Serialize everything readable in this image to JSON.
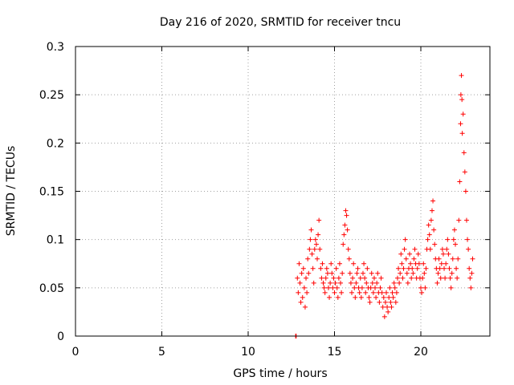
{
  "chart_data": {
    "type": "scatter",
    "title": "Day 216 of 2020, SRMTID for receiver tncu",
    "xlabel": "GPS time / hours",
    "ylabel": "SRMTID / TECUs",
    "xlim": [
      0,
      24
    ],
    "ylim": [
      0,
      0.3
    ],
    "x_ticks": [
      0,
      5,
      10,
      15,
      20
    ],
    "y_ticks": [
      0,
      0.05,
      0.1,
      0.15,
      0.2,
      0.25,
      0.3
    ],
    "x_tick_labels": [
      "0",
      "5",
      "10",
      "15",
      "20"
    ],
    "y_tick_labels": [
      "0",
      "0.05",
      "0.1",
      "0.15",
      "0.2",
      "0.25",
      "0.3"
    ],
    "grid": true,
    "legend": "none",
    "marker": "+",
    "color": "#ff0000",
    "points": [
      [
        12.75,
        0.0
      ],
      [
        12.78,
        0.0
      ],
      [
        12.85,
        0.06
      ],
      [
        12.9,
        0.045
      ],
      [
        12.95,
        0.075
      ],
      [
        13.0,
        0.055
      ],
      [
        13.05,
        0.035
      ],
      [
        13.1,
        0.065
      ],
      [
        13.15,
        0.04
      ],
      [
        13.2,
        0.07
      ],
      [
        13.25,
        0.05
      ],
      [
        13.3,
        0.03
      ],
      [
        13.35,
        0.06
      ],
      [
        13.4,
        0.045
      ],
      [
        13.45,
        0.08
      ],
      [
        13.5,
        0.065
      ],
      [
        13.55,
        0.09
      ],
      [
        13.6,
        0.1
      ],
      [
        13.65,
        0.11
      ],
      [
        13.7,
        0.085
      ],
      [
        13.75,
        0.07
      ],
      [
        13.8,
        0.055
      ],
      [
        13.85,
        0.09
      ],
      [
        13.9,
        0.1
      ],
      [
        13.95,
        0.095
      ],
      [
        14.0,
        0.08
      ],
      [
        14.05,
        0.105
      ],
      [
        14.1,
        0.12
      ],
      [
        14.15,
        0.09
      ],
      [
        14.2,
        0.07
      ],
      [
        14.25,
        0.06
      ],
      [
        14.3,
        0.075
      ],
      [
        14.35,
        0.055
      ],
      [
        14.4,
        0.05
      ],
      [
        14.45,
        0.045
      ],
      [
        14.5,
        0.06
      ],
      [
        14.55,
        0.07
      ],
      [
        14.6,
        0.065
      ],
      [
        14.65,
        0.05
      ],
      [
        14.7,
        0.04
      ],
      [
        14.75,
        0.055
      ],
      [
        14.8,
        0.075
      ],
      [
        14.85,
        0.065
      ],
      [
        14.9,
        0.05
      ],
      [
        14.95,
        0.06
      ],
      [
        15.0,
        0.045
      ],
      [
        15.05,
        0.055
      ],
      [
        15.1,
        0.07
      ],
      [
        15.15,
        0.05
      ],
      [
        15.2,
        0.04
      ],
      [
        15.25,
        0.06
      ],
      [
        15.3,
        0.075
      ],
      [
        15.35,
        0.055
      ],
      [
        15.4,
        0.045
      ],
      [
        15.45,
        0.065
      ],
      [
        15.5,
        0.095
      ],
      [
        15.55,
        0.105
      ],
      [
        15.6,
        0.115
      ],
      [
        15.65,
        0.13
      ],
      [
        15.7,
        0.125
      ],
      [
        15.75,
        0.11
      ],
      [
        15.8,
        0.09
      ],
      [
        15.85,
        0.08
      ],
      [
        15.9,
        0.065
      ],
      [
        15.95,
        0.055
      ],
      [
        16.0,
        0.045
      ],
      [
        16.05,
        0.06
      ],
      [
        16.1,
        0.075
      ],
      [
        16.15,
        0.05
      ],
      [
        16.2,
        0.04
      ],
      [
        16.25,
        0.055
      ],
      [
        16.3,
        0.065
      ],
      [
        16.35,
        0.07
      ],
      [
        16.4,
        0.05
      ],
      [
        16.45,
        0.045
      ],
      [
        16.5,
        0.06
      ],
      [
        16.55,
        0.04
      ],
      [
        16.6,
        0.05
      ],
      [
        16.65,
        0.065
      ],
      [
        16.7,
        0.075
      ],
      [
        16.75,
        0.06
      ],
      [
        16.8,
        0.045
      ],
      [
        16.85,
        0.055
      ],
      [
        16.9,
        0.07
      ],
      [
        16.95,
        0.05
      ],
      [
        17.0,
        0.04
      ],
      [
        17.05,
        0.035
      ],
      [
        17.1,
        0.05
      ],
      [
        17.15,
        0.065
      ],
      [
        17.2,
        0.055
      ],
      [
        17.25,
        0.045
      ],
      [
        17.3,
        0.06
      ],
      [
        17.35,
        0.05
      ],
      [
        17.4,
        0.04
      ],
      [
        17.45,
        0.055
      ],
      [
        17.5,
        0.065
      ],
      [
        17.55,
        0.045
      ],
      [
        17.6,
        0.035
      ],
      [
        17.65,
        0.05
      ],
      [
        17.7,
        0.06
      ],
      [
        17.75,
        0.045
      ],
      [
        17.8,
        0.03
      ],
      [
        17.85,
        0.04
      ],
      [
        17.9,
        0.02
      ],
      [
        17.95,
        0.035
      ],
      [
        18.0,
        0.045
      ],
      [
        18.05,
        0.03
      ],
      [
        18.1,
        0.025
      ],
      [
        18.15,
        0.04
      ],
      [
        18.2,
        0.05
      ],
      [
        18.25,
        0.035
      ],
      [
        18.3,
        0.03
      ],
      [
        18.35,
        0.045
      ],
      [
        18.4,
        0.04
      ],
      [
        18.45,
        0.055
      ],
      [
        18.5,
        0.05
      ],
      [
        18.55,
        0.035
      ],
      [
        18.6,
        0.045
      ],
      [
        18.65,
        0.06
      ],
      [
        18.7,
        0.07
      ],
      [
        18.75,
        0.055
      ],
      [
        18.8,
        0.065
      ],
      [
        18.85,
        0.085
      ],
      [
        18.9,
        0.075
      ],
      [
        18.95,
        0.06
      ],
      [
        19.0,
        0.07
      ],
      [
        19.05,
        0.09
      ],
      [
        19.1,
        0.1
      ],
      [
        19.15,
        0.08
      ],
      [
        19.2,
        0.065
      ],
      [
        19.25,
        0.055
      ],
      [
        19.3,
        0.07
      ],
      [
        19.35,
        0.085
      ],
      [
        19.4,
        0.075
      ],
      [
        19.45,
        0.06
      ],
      [
        19.5,
        0.07
      ],
      [
        19.55,
        0.065
      ],
      [
        19.6,
        0.08
      ],
      [
        19.65,
        0.09
      ],
      [
        19.7,
        0.075
      ],
      [
        19.75,
        0.06
      ],
      [
        19.8,
        0.07
      ],
      [
        19.85,
        0.085
      ],
      [
        19.9,
        0.075
      ],
      [
        19.95,
        0.06
      ],
      [
        20.0,
        0.05
      ],
      [
        20.05,
        0.045
      ],
      [
        20.1,
        0.06
      ],
      [
        20.15,
        0.075
      ],
      [
        20.2,
        0.065
      ],
      [
        20.25,
        0.05
      ],
      [
        20.3,
        0.07
      ],
      [
        20.35,
        0.09
      ],
      [
        20.4,
        0.1
      ],
      [
        20.45,
        0.115
      ],
      [
        20.5,
        0.105
      ],
      [
        20.55,
        0.09
      ],
      [
        20.6,
        0.12
      ],
      [
        20.65,
        0.13
      ],
      [
        20.7,
        0.14
      ],
      [
        20.75,
        0.11
      ],
      [
        20.8,
        0.095
      ],
      [
        20.85,
        0.08
      ],
      [
        20.9,
        0.07
      ],
      [
        20.95,
        0.055
      ],
      [
        21.0,
        0.065
      ],
      [
        21.05,
        0.08
      ],
      [
        21.1,
        0.07
      ],
      [
        21.15,
        0.06
      ],
      [
        21.2,
        0.075
      ],
      [
        21.25,
        0.09
      ],
      [
        21.3,
        0.085
      ],
      [
        21.35,
        0.07
      ],
      [
        21.4,
        0.06
      ],
      [
        21.45,
        0.075
      ],
      [
        21.5,
        0.09
      ],
      [
        21.55,
        0.1
      ],
      [
        21.6,
        0.085
      ],
      [
        21.65,
        0.07
      ],
      [
        21.7,
        0.06
      ],
      [
        21.75,
        0.05
      ],
      [
        21.8,
        0.065
      ],
      [
        21.85,
        0.08
      ],
      [
        21.9,
        0.1
      ],
      [
        21.95,
        0.11
      ],
      [
        22.0,
        0.095
      ],
      [
        22.05,
        0.07
      ],
      [
        22.1,
        0.06
      ],
      [
        22.15,
        0.08
      ],
      [
        22.2,
        0.12
      ],
      [
        22.25,
        0.16
      ],
      [
        22.3,
        0.22
      ],
      [
        22.32,
        0.25
      ],
      [
        22.35,
        0.27
      ],
      [
        22.38,
        0.245
      ],
      [
        22.4,
        0.21
      ],
      [
        22.45,
        0.23
      ],
      [
        22.5,
        0.19
      ],
      [
        22.55,
        0.17
      ],
      [
        22.6,
        0.15
      ],
      [
        22.65,
        0.12
      ],
      [
        22.7,
        0.1
      ],
      [
        22.75,
        0.09
      ],
      [
        22.8,
        0.07
      ],
      [
        22.85,
        0.06
      ],
      [
        22.9,
        0.05
      ],
      [
        22.95,
        0.065
      ],
      [
        23.0,
        0.08
      ]
    ]
  }
}
